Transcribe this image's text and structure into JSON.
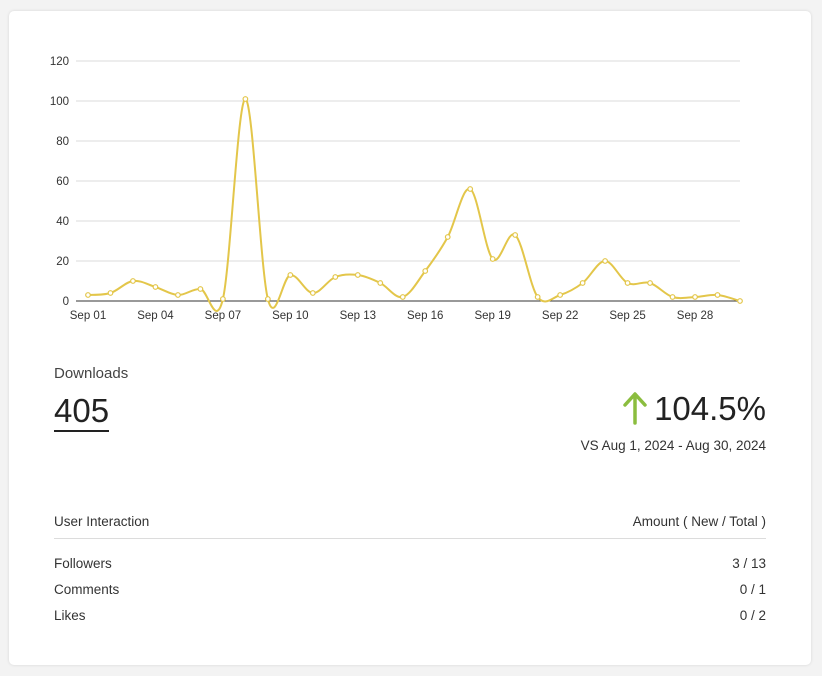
{
  "chart_data": {
    "type": "line",
    "x": [
      "Sep 01",
      "Sep 02",
      "Sep 03",
      "Sep 04",
      "Sep 05",
      "Sep 06",
      "Sep 07",
      "Sep 08",
      "Sep 09",
      "Sep 10",
      "Sep 11",
      "Sep 12",
      "Sep 13",
      "Sep 14",
      "Sep 15",
      "Sep 16",
      "Sep 17",
      "Sep 18",
      "Sep 19",
      "Sep 20",
      "Sep 21",
      "Sep 22",
      "Sep 23",
      "Sep 24",
      "Sep 25",
      "Sep 26",
      "Sep 27",
      "Sep 28",
      "Sep 29",
      "Sep 30"
    ],
    "x_tick_labels": [
      "Sep 01",
      "Sep 04",
      "Sep 07",
      "Sep 10",
      "Sep 13",
      "Sep 16",
      "Sep 19",
      "Sep 22",
      "Sep 25",
      "Sep 28"
    ],
    "series": [
      {
        "values": [
          3,
          4,
          10,
          7,
          3,
          6,
          1,
          101,
          1,
          13,
          4,
          12,
          13,
          9,
          2,
          15,
          32,
          56,
          21,
          33,
          2,
          3,
          9,
          20,
          9,
          9,
          2,
          2,
          3,
          0
        ]
      }
    ],
    "ylim": [
      0,
      120
    ],
    "y_ticks": [
      0,
      20,
      40,
      60,
      80,
      100,
      120
    ],
    "grid": true,
    "colors": {
      "line": "#e3c64a",
      "grid": "#cfcfcf",
      "axis": "#333333"
    }
  },
  "metric": {
    "label": "Downloads",
    "value": "405",
    "change": "104.5%",
    "change_direction": "up",
    "change_color": "#8bbd3f",
    "compare": "VS Aug 1, 2024 - Aug 30, 2024"
  },
  "table": {
    "header_left": "User Interaction",
    "header_right": "Amount ( New / Total )",
    "rows": [
      {
        "label": "Followers",
        "value": "3 / 13"
      },
      {
        "label": "Comments",
        "value": "0 / 1"
      },
      {
        "label": "Likes",
        "value": "0 / 2"
      }
    ]
  }
}
